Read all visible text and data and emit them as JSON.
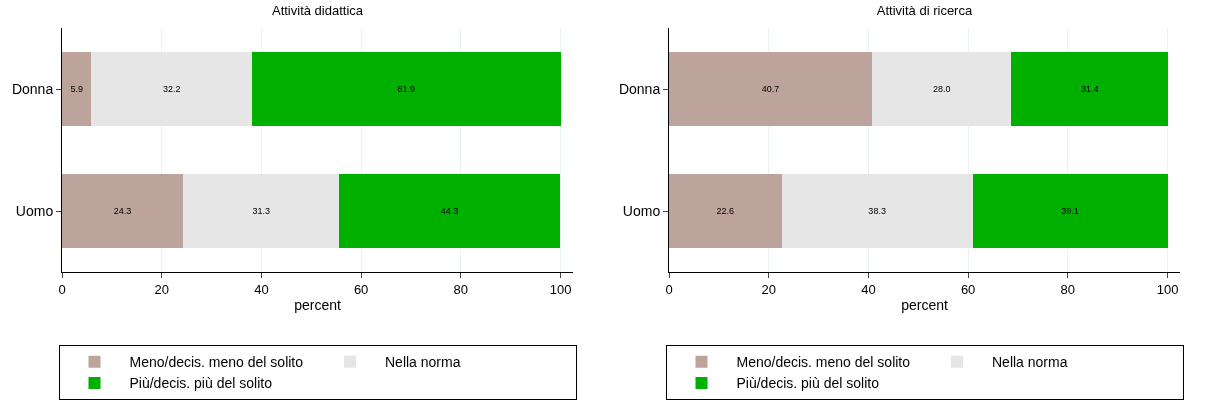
{
  "chart_data": [
    {
      "type": "bar",
      "orientation": "horizontal",
      "stacked": true,
      "title": "Attività didattica",
      "xlabel": "percent",
      "categories": [
        "Donna",
        "Uomo"
      ],
      "xlim": [
        0,
        102.5
      ],
      "xticks": [
        0,
        20,
        40,
        60,
        80,
        100
      ],
      "grid": "x",
      "legend": "bottom",
      "series": [
        {
          "name": "Meno/decis. meno del solito",
          "color": "#bca39c",
          "values": [
            5.9,
            24.3
          ],
          "value_labels": [
            "5.9",
            "24.3"
          ]
        },
        {
          "name": "Nella norma",
          "color": "#e6e6e6",
          "values": [
            32.2,
            31.3
          ],
          "value_labels": [
            "32.2",
            "31.3"
          ]
        },
        {
          "name": "Più/decis. più del solito",
          "color": "#00b000",
          "values": [
            61.9,
            44.3
          ],
          "value_labels": [
            "61.9",
            "44.3"
          ]
        }
      ]
    },
    {
      "type": "bar",
      "orientation": "horizontal",
      "stacked": true,
      "title": "Attività di ricerca",
      "xlabel": "percent",
      "categories": [
        "Donna",
        "Uomo"
      ],
      "xlim": [
        0,
        102.5
      ],
      "xticks": [
        0,
        20,
        40,
        60,
        80,
        100
      ],
      "grid": "x",
      "legend": "bottom",
      "series": [
        {
          "name": "Meno/decis. meno del solito",
          "color": "#bca39c",
          "values": [
            40.7,
            22.6
          ],
          "value_labels": [
            "40.7",
            "22.6"
          ]
        },
        {
          "name": "Nella norma",
          "color": "#e6e6e6",
          "values": [
            28.0,
            38.3
          ],
          "value_labels": [
            "28.0",
            "38.3"
          ]
        },
        {
          "name": "Più/decis. più del solito",
          "color": "#00b000",
          "values": [
            31.4,
            39.1
          ],
          "value_labels": [
            "31.4",
            "39.1"
          ]
        }
      ]
    }
  ]
}
